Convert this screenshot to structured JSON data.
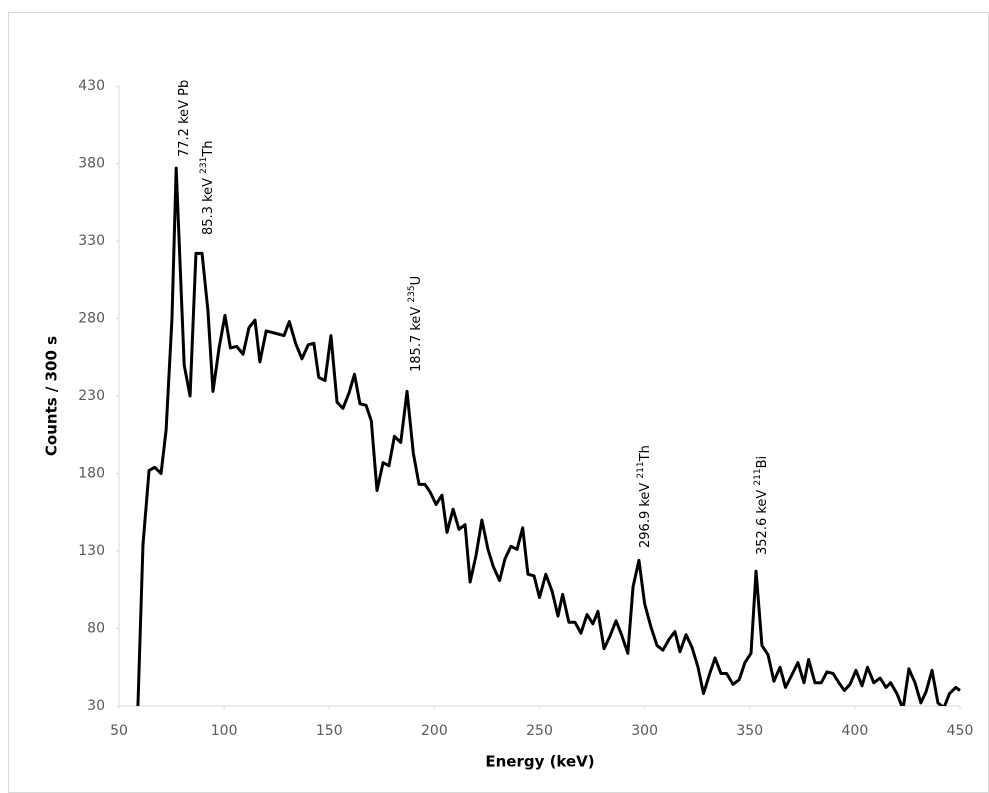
{
  "chart_data": {
    "type": "line",
    "y_label": "Counts / 300 s",
    "x_label": "Energy (keV)",
    "color": "#000000",
    "grid": false,
    "xlim": [
      50,
      450
    ],
    "ylim": [
      30,
      430
    ],
    "xticks": [
      50,
      100,
      150,
      200,
      250,
      300,
      350,
      400,
      450
    ],
    "yticks": [
      30,
      80,
      130,
      180,
      230,
      280,
      330,
      380,
      430
    ],
    "x": [
      59,
      61.4,
      64.3,
      67,
      70,
      72.4,
      75.2,
      77.2,
      81,
      83.8,
      86.6,
      89.5,
      92.3,
      94.7,
      97.6,
      100.4,
      103,
      106,
      109,
      111.8,
      114.7,
      117,
      120,
      122.8,
      125.6,
      128.5,
      131,
      134,
      137,
      140,
      142.7,
      145,
      148,
      150.8,
      153.7,
      156.5,
      159.4,
      162,
      164.6,
      167.5,
      170,
      172.7,
      175.6,
      178.4,
      181,
      184,
      187,
      190,
      192.7,
      195.5,
      198,
      200.8,
      203.6,
      206,
      208.9,
      211.7,
      214.6,
      217,
      219.8,
      222.6,
      225.5,
      228,
      231,
      233.6,
      236.4,
      239.3,
      242,
      244.5,
      247.4,
      250,
      253,
      256,
      258.8,
      261,
      264,
      266.9,
      269.7,
      272.6,
      275.4,
      277.8,
      280.7,
      283.5,
      286.4,
      289,
      292,
      294.5,
      297.3,
      300,
      303,
      305.9,
      308.7,
      311.6,
      314.4,
      316.8,
      319.7,
      322.5,
      325.4,
      328,
      331,
      333.5,
      336.3,
      339,
      342,
      345,
      347.7,
      350.6,
      353,
      355.8,
      358.7,
      361.5,
      364.4,
      367,
      370,
      372.9,
      375.8,
      378,
      381,
      384,
      386.7,
      389.6,
      392.4,
      395,
      397.7,
      400.5,
      403.4,
      406,
      409,
      412,
      414.8,
      417,
      420,
      422.9,
      425.7,
      428.6,
      431.4,
      433.8,
      436.7,
      439.5,
      442.4,
      445,
      448,
      450
    ],
    "values": [
      30,
      134,
      182,
      184,
      180,
      208,
      280,
      377,
      250,
      230,
      322,
      322,
      285,
      233,
      261,
      282,
      261,
      262,
      257,
      274,
      279,
      252,
      272,
      271,
      270,
      269,
      278,
      264,
      254,
      263,
      264,
      242,
      240,
      269,
      226,
      222,
      232,
      244,
      225,
      224,
      214,
      169,
      187,
      185,
      204,
      200,
      233,
      193,
      173,
      173,
      168,
      160,
      166,
      142,
      157,
      144,
      147,
      110,
      127,
      150,
      131,
      120,
      111,
      125,
      133,
      131,
      145,
      115,
      114,
      100,
      115,
      104,
      88,
      102,
      84,
      84,
      77,
      89,
      83,
      91,
      67,
      75,
      85,
      76,
      64,
      107,
      124,
      96,
      81,
      69,
      66,
      73,
      78,
      65,
      76,
      68,
      55,
      38,
      51,
      61,
      51,
      51,
      44,
      47,
      58,
      64,
      117,
      69,
      63,
      46,
      55,
      42,
      50,
      58,
      45,
      60,
      45,
      45,
      52,
      51,
      45,
      40,
      44,
      53,
      43,
      55,
      45,
      48,
      42,
      45,
      38,
      28,
      54,
      45,
      32,
      39,
      53,
      32,
      29,
      38,
      42,
      40
    ],
    "annotations": [
      {
        "text": "77.2 keV Pb"
      },
      {
        "text": "85.3 keV ",
        "sup": "231",
        "element": "Th"
      },
      {
        "text": "185.7 keV ",
        "sup": "235",
        "element": "U"
      },
      {
        "text": "296.9 keV ",
        "sup": "211",
        "element": "Th"
      },
      {
        "text": "352.6 keV  ",
        "sup": "211",
        "element": "Bi"
      }
    ]
  }
}
